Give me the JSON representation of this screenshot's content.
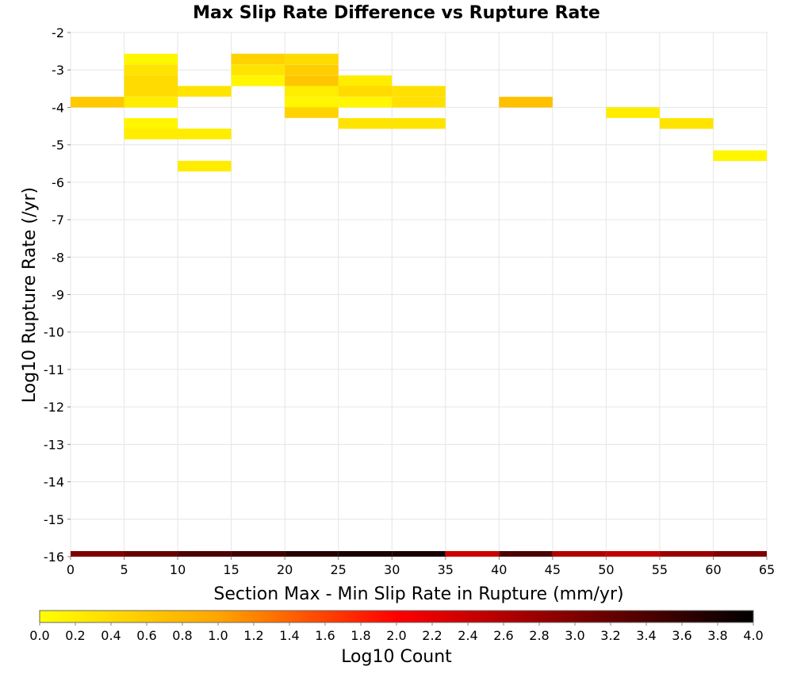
{
  "chart_data": {
    "type": "heatmap",
    "title": "Max Slip Rate Difference vs Rupture Rate",
    "xlabel": "Section Max - Min Slip Rate in Rupture (mm/yr)",
    "ylabel": "Log10 Rupture Rate (/yr)",
    "xlim": [
      0,
      65
    ],
    "ylim": [
      -16,
      -2
    ],
    "x_ticks": [
      "0",
      "5",
      "10",
      "15",
      "20",
      "25",
      "30",
      "35",
      "40",
      "45",
      "50",
      "55",
      "60",
      "65"
    ],
    "y_ticks": [
      "-2",
      "-3",
      "-4",
      "-5",
      "-6",
      "-7",
      "-8",
      "-9",
      "-10",
      "-11",
      "-12",
      "-13",
      "-14",
      "-15",
      "-16"
    ],
    "grid": true,
    "x_bin_width": 5,
    "y_bin_height": 0.286,
    "cells": [
      {
        "x": 0,
        "y": -3.86,
        "z": 0.6
      },
      {
        "x": 5,
        "y": -2.71,
        "z": 0.1
      },
      {
        "x": 5,
        "y": -3.0,
        "z": 0.3
      },
      {
        "x": 5,
        "y": -3.29,
        "z": 0.4
      },
      {
        "x": 5,
        "y": -3.57,
        "z": 0.4
      },
      {
        "x": 5,
        "y": -3.86,
        "z": 0.2
      },
      {
        "x": 5,
        "y": -4.43,
        "z": 0.1
      },
      {
        "x": 5,
        "y": -4.71,
        "z": 0.2
      },
      {
        "x": 10,
        "y": -3.57,
        "z": 0.3
      },
      {
        "x": 10,
        "y": -4.71,
        "z": 0.2
      },
      {
        "x": 10,
        "y": -5.57,
        "z": 0.2
      },
      {
        "x": 15,
        "y": -2.71,
        "z": 0.5
      },
      {
        "x": 15,
        "y": -3.0,
        "z": 0.3
      },
      {
        "x": 15,
        "y": -3.29,
        "z": 0.1
      },
      {
        "x": 20,
        "y": -2.71,
        "z": 0.4
      },
      {
        "x": 20,
        "y": -3.0,
        "z": 0.55
      },
      {
        "x": 20,
        "y": -3.29,
        "z": 0.65
      },
      {
        "x": 20,
        "y": -3.57,
        "z": 0.2
      },
      {
        "x": 20,
        "y": -3.86,
        "z": 0.1
      },
      {
        "x": 20,
        "y": -4.14,
        "z": 0.5
      },
      {
        "x": 25,
        "y": -3.29,
        "z": 0.2
      },
      {
        "x": 25,
        "y": -3.57,
        "z": 0.4
      },
      {
        "x": 25,
        "y": -3.86,
        "z": 0.1
      },
      {
        "x": 25,
        "y": -4.43,
        "z": 0.3
      },
      {
        "x": 30,
        "y": -3.57,
        "z": 0.35
      },
      {
        "x": 30,
        "y": -3.86,
        "z": 0.35
      },
      {
        "x": 30,
        "y": -4.43,
        "z": 0.3
      },
      {
        "x": 40,
        "y": -3.86,
        "z": 0.7
      },
      {
        "x": 50,
        "y": -4.14,
        "z": 0.2
      },
      {
        "x": 55,
        "y": -4.43,
        "z": 0.3
      },
      {
        "x": 60,
        "y": -5.29,
        "z": 0.1
      }
    ],
    "bottom_row": {
      "y": -16,
      "z_values": [
        3.0,
        3.2,
        3.4,
        3.5,
        3.7,
        3.8,
        3.8,
        2.4,
        3.4,
        2.6,
        2.5,
        2.8,
        3.0
      ]
    },
    "colorbar": {
      "label": "Log10 Count",
      "range": [
        0,
        4
      ],
      "ticks": [
        "0.0",
        "0.2",
        "0.4",
        "0.6",
        "0.8",
        "1.0",
        "1.2",
        "1.4",
        "1.6",
        "1.8",
        "2.0",
        "2.2",
        "2.4",
        "2.6",
        "2.8",
        "3.0",
        "3.2",
        "3.4",
        "3.6",
        "3.8",
        "4.0"
      ],
      "colors": [
        "#ffff00",
        "#ffa500",
        "#ff0000",
        "#7f0000",
        "#000000"
      ]
    }
  }
}
